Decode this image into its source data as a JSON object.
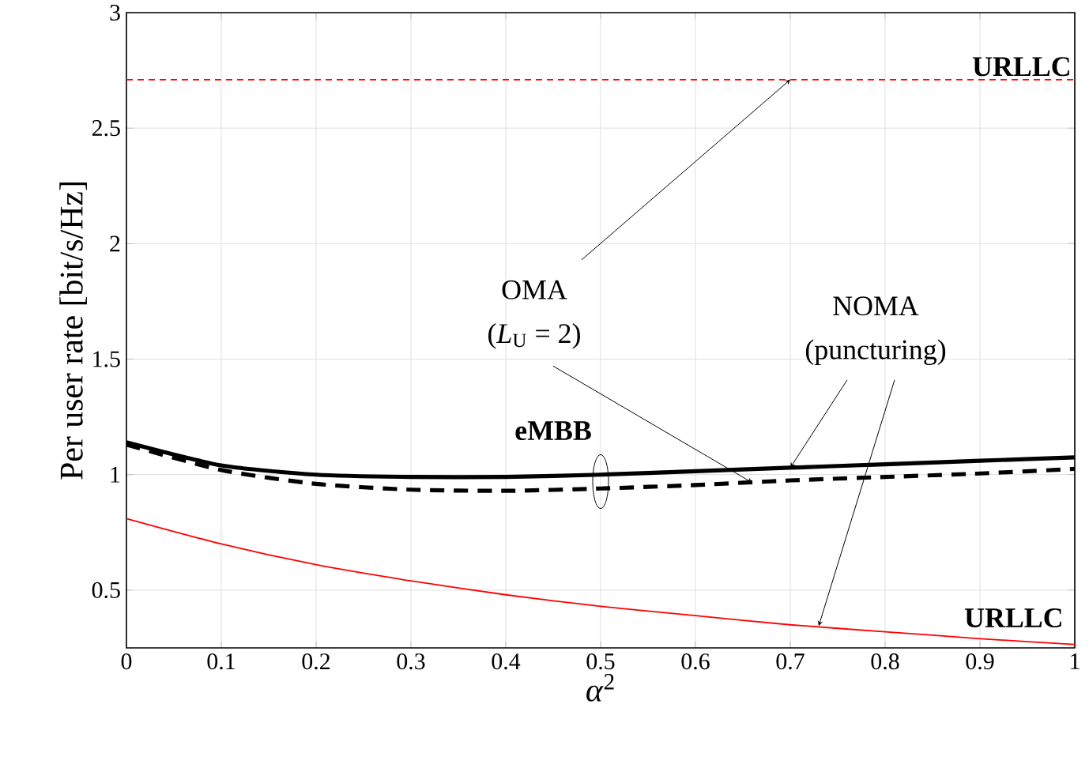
{
  "chart_data": {
    "type": "line",
    "xlabel": "*α*$^{2}$",
    "ylabel": "Per user rate [bit/s/Hz]",
    "xlim": [
      0,
      1
    ],
    "ylim": [
      0.25,
      3
    ],
    "xticks": [
      0,
      0.1,
      0.2,
      0.3,
      0.4,
      0.5,
      0.6,
      0.7,
      0.8,
      0.9,
      1
    ],
    "yticks": [
      0.5,
      1,
      1.5,
      2,
      2.5,
      3
    ],
    "grid": true,
    "series": [
      {
        "color": "#000000",
        "line_style": "solid",
        "x": [
          0,
          0.1,
          0.2,
          0.3,
          0.4,
          0.5,
          0.6,
          0.7,
          0.8,
          0.9,
          1
        ],
        "values": [
          1.14,
          1.04,
          1.0,
          0.99,
          0.99,
          1.0,
          1.015,
          1.03,
          1.045,
          1.06,
          1.075
        ]
      },
      {
        "color": "#000000",
        "line_style": "dashed",
        "x": [
          0,
          0.1,
          0.2,
          0.3,
          0.4,
          0.5,
          0.6,
          0.7,
          0.8,
          0.9,
          1
        ],
        "values": [
          1.13,
          1.02,
          0.96,
          0.935,
          0.93,
          0.94,
          0.955,
          0.975,
          0.99,
          1.005,
          1.025
        ]
      },
      {
        "color": "#ff0000",
        "line_style": "solid",
        "x": [
          0,
          0.1,
          0.2,
          0.3,
          0.4,
          0.5,
          0.6,
          0.7,
          0.8,
          0.9,
          1
        ],
        "values": [
          0.81,
          0.7,
          0.61,
          0.54,
          0.48,
          0.43,
          0.39,
          0.35,
          0.32,
          0.29,
          0.265
        ]
      }
    ],
    "ref_lines": [
      {
        "axis": "y",
        "value": 2.71,
        "label": "URLLC",
        "color": "#ff0000",
        "line_style": "dashed"
      }
    ],
    "annotations": [
      {
        "text": "OMA",
        "x": 0.7,
        "y": 2.71
      },
      {
        "text": "(*L*$_{U}$ = 2)",
        "x": 0.66,
        "y": 0.965
      },
      "NOMA",
      {
        "text": "(puncturing)",
        "x": 0.73,
        "y": 0.345
      },
      {
        "text": "eMBB",
        "x": 0.5,
        "y": 0.97
      },
      "URLLC"
    ]
  }
}
